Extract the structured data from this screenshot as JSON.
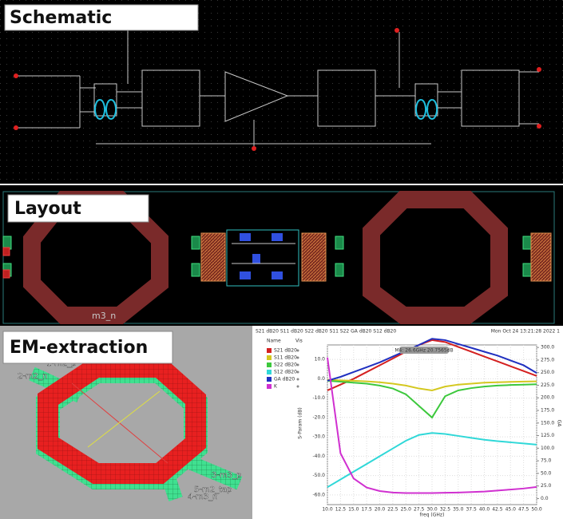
{
  "panels": {
    "schematic": {
      "title": "Schematic"
    },
    "layout": {
      "title": "Layout",
      "label": "m3_n"
    },
    "em": {
      "title": "EM-extraction",
      "ports": [
        "2-m2_n",
        "1-m2_p",
        "3-m3_p",
        "5-m2_tap",
        "4-m3_n"
      ]
    }
  },
  "chart_data": {
    "type": "line",
    "title": "S21 dB20 S11 dB20 S22 dB20 S11 S22 GA dB20 S12 dB20",
    "subtitle": "Mon Oct 24 13:21:28 2022 1",
    "annotation": "M4: 26.6GHz 20.7565dB",
    "xlabel": "freq (GHz)",
    "ylabel": "S-Param (dB)",
    "y2label": "GA",
    "legend_header": [
      "Name",
      "Vis"
    ],
    "x": [
      10,
      12.5,
      15,
      17.5,
      20,
      22.5,
      25,
      27.5,
      30,
      32.5,
      35,
      37.5,
      40,
      42.5,
      45,
      47.5,
      50
    ],
    "xlim": [
      10,
      50
    ],
    "xticks": [
      {
        "value": 10,
        "label": "10.0"
      },
      {
        "value": 12.5,
        "label": "12.5"
      },
      {
        "value": 15,
        "label": "15.0"
      },
      {
        "value": 17.5,
        "label": "17.5"
      },
      {
        "value": 20,
        "label": "20.0"
      },
      {
        "value": 22.5,
        "label": "22.5"
      },
      {
        "value": 25,
        "label": "25.0"
      },
      {
        "value": 27.5,
        "label": "27.5"
      },
      {
        "value": 30,
        "label": "30.0"
      },
      {
        "value": 32.5,
        "label": "32.5"
      },
      {
        "value": 35,
        "label": "35.0"
      },
      {
        "value": 37.5,
        "label": "37.5"
      },
      {
        "value": 40,
        "label": "40.0"
      },
      {
        "value": 42.5,
        "label": "42.5"
      },
      {
        "value": 45,
        "label": "45.0"
      },
      {
        "value": 47.5,
        "label": "47.5"
      },
      {
        "value": 50,
        "label": "50.0"
      }
    ],
    "ylim": [
      -65,
      17.5
    ],
    "yticks": [
      {
        "value": 10,
        "label": "10.0"
      },
      {
        "value": 0,
        "label": "0.0"
      },
      {
        "value": -10,
        "label": "-10.0"
      },
      {
        "value": -20,
        "label": "-20.0"
      },
      {
        "value": -30,
        "label": "-30.0"
      },
      {
        "value": -40,
        "label": "-40.0"
      },
      {
        "value": -50,
        "label": "-50.0"
      },
      {
        "value": -60,
        "label": "-60.0"
      }
    ],
    "y2lim": [
      -12,
      305
    ],
    "y2ticks": [
      {
        "value": 0,
        "label": "0.0"
      },
      {
        "value": 25,
        "label": "25.0"
      },
      {
        "value": 50,
        "label": "50.0"
      },
      {
        "value": 75,
        "label": "75.0"
      },
      {
        "value": 100,
        "label": "100.0"
      },
      {
        "value": 125,
        "label": "125.0"
      },
      {
        "value": 150,
        "label": "150.0"
      },
      {
        "value": 175,
        "label": "175.0"
      },
      {
        "value": 200,
        "label": "200.0"
      },
      {
        "value": 225,
        "label": "225.0"
      },
      {
        "value": 250,
        "label": "250.0"
      },
      {
        "value": 275,
        "label": "275.0"
      },
      {
        "value": 300,
        "label": "300.0"
      }
    ],
    "grid": true,
    "series": [
      {
        "name": "S21 dB20",
        "color": "#d42020",
        "values": [
          -6,
          -3,
          0,
          3.5,
          7,
          10.5,
          14,
          17.5,
          20,
          19,
          16.5,
          14,
          11.5,
          9,
          6.5,
          4,
          1.5
        ]
      },
      {
        "name": "S11 dB20",
        "color": "#d4c820",
        "values": [
          -0.5,
          -0.8,
          -1,
          -1.3,
          -1.8,
          -2.5,
          -3.5,
          -5,
          -6,
          -4,
          -3,
          -2.5,
          -2,
          -1.8,
          -1.6,
          -1.4,
          -1.3
        ]
      },
      {
        "name": "S22 dB20",
        "color": "#3cc83c",
        "values": [
          -1,
          -1.5,
          -2,
          -2.5,
          -3.5,
          -5,
          -8,
          -14,
          -20,
          -9,
          -6,
          -4.8,
          -4,
          -3.5,
          -3.2,
          -3,
          -2.8
        ]
      },
      {
        "name": "S12 dB20",
        "color": "#30d8d8",
        "values": [
          -56,
          -52,
          -48,
          -44,
          -40,
          -36,
          -32,
          -29,
          -28,
          -28.5,
          -29.5,
          -30.5,
          -31.5,
          -32.2,
          -32.8,
          -33.4,
          -34
        ]
      },
      {
        "name": "GA dB20",
        "color": "#2030c0",
        "values": [
          -1,
          1,
          3.5,
          6,
          8.5,
          11.5,
          14.5,
          17.5,
          20.7,
          20,
          18,
          16,
          14,
          12,
          9.5,
          7,
          3
        ]
      },
      {
        "name": "K",
        "color": "#d030d0",
        "axis": "y2",
        "values": [
          280,
          90,
          40,
          22,
          15,
          12,
          11,
          11,
          11,
          11.5,
          12,
          13,
          14,
          16,
          18,
          20,
          23
        ]
      }
    ]
  }
}
